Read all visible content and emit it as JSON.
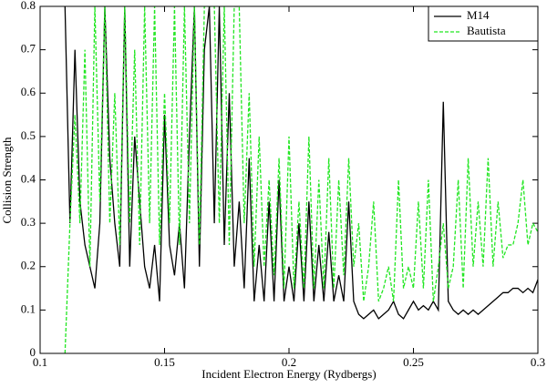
{
  "chart_data": {
    "type": "line",
    "xlabel": "Incident Electron Energy (Rydbergs)",
    "ylabel": "Collision Strength",
    "xlim": [
      0.1,
      0.3
    ],
    "xticks": [
      0.1,
      0.15,
      0.2,
      0.25,
      0.3
    ],
    "ylim": [
      0,
      0.8
    ],
    "yticks": [
      0,
      0.1,
      0.2,
      0.3,
      0.4,
      0.5,
      0.6,
      0.7,
      0.8
    ],
    "legend": "upper right",
    "x": [
      0.11,
      0.112,
      0.114,
      0.116,
      0.118,
      0.12,
      0.122,
      0.124,
      0.126,
      0.128,
      0.13,
      0.132,
      0.134,
      0.136,
      0.138,
      0.14,
      0.142,
      0.144,
      0.146,
      0.148,
      0.15,
      0.152,
      0.154,
      0.156,
      0.158,
      0.16,
      0.162,
      0.164,
      0.166,
      0.168,
      0.17,
      0.172,
      0.174,
      0.176,
      0.178,
      0.18,
      0.182,
      0.184,
      0.186,
      0.188,
      0.19,
      0.192,
      0.194,
      0.196,
      0.198,
      0.2,
      0.202,
      0.204,
      0.206,
      0.208,
      0.21,
      0.212,
      0.214,
      0.216,
      0.218,
      0.22,
      0.222,
      0.224,
      0.226,
      0.228,
      0.23,
      0.232,
      0.234,
      0.236,
      0.238,
      0.24,
      0.242,
      0.244,
      0.246,
      0.248,
      0.25,
      0.252,
      0.254,
      0.256,
      0.258,
      0.26,
      0.262,
      0.264,
      0.266,
      0.268,
      0.27,
      0.272,
      0.274,
      0.276,
      0.278,
      0.28,
      0.282,
      0.284,
      0.286,
      0.288,
      0.29,
      0.292,
      0.294,
      0.296,
      0.298,
      0.3
    ],
    "series": [
      {
        "name": "M14",
        "color": "#000000",
        "dashed": false,
        "values": [
          0.8,
          0.3,
          0.7,
          0.35,
          0.25,
          0.2,
          0.15,
          0.3,
          0.8,
          0.45,
          0.3,
          0.2,
          0.8,
          0.2,
          0.5,
          0.35,
          0.2,
          0.15,
          0.25,
          0.12,
          0.55,
          0.25,
          0.18,
          0.3,
          0.15,
          0.5,
          0.8,
          0.2,
          0.7,
          0.8,
          0.3,
          0.8,
          0.25,
          0.6,
          0.2,
          0.35,
          0.15,
          0.45,
          0.12,
          0.25,
          0.12,
          0.35,
          0.12,
          0.4,
          0.12,
          0.2,
          0.12,
          0.3,
          0.12,
          0.35,
          0.12,
          0.25,
          0.12,
          0.28,
          0.12,
          0.18,
          0.12,
          0.35,
          0.12,
          0.09,
          0.08,
          0.09,
          0.1,
          0.08,
          0.09,
          0.1,
          0.12,
          0.09,
          0.08,
          0.1,
          0.12,
          0.1,
          0.11,
          0.1,
          0.12,
          0.1,
          0.58,
          0.12,
          0.1,
          0.09,
          0.1,
          0.09,
          0.1,
          0.09,
          0.1,
          0.11,
          0.12,
          0.13,
          0.14,
          0.14,
          0.15,
          0.15,
          0.14,
          0.15,
          0.14,
          0.17
        ]
      },
      {
        "name": "Bautista",
        "color": "#22e622",
        "dashed": true,
        "values": [
          0.0,
          0.3,
          0.55,
          0.3,
          0.7,
          0.2,
          0.8,
          0.35,
          0.8,
          0.3,
          0.6,
          0.25,
          0.8,
          0.3,
          0.7,
          0.25,
          0.8,
          0.3,
          0.8,
          0.25,
          0.6,
          0.3,
          0.8,
          0.25,
          0.8,
          0.3,
          0.8,
          0.25,
          0.8,
          0.8,
          0.8,
          0.3,
          0.8,
          0.25,
          0.8,
          0.8,
          0.3,
          0.6,
          0.2,
          0.5,
          0.2,
          0.4,
          0.18,
          0.45,
          0.15,
          0.5,
          0.15,
          0.35,
          0.15,
          0.5,
          0.15,
          0.4,
          0.15,
          0.45,
          0.15,
          0.4,
          0.18,
          0.45,
          0.2,
          0.3,
          0.12,
          0.2,
          0.35,
          0.12,
          0.15,
          0.2,
          0.12,
          0.4,
          0.15,
          0.2,
          0.15,
          0.35,
          0.15,
          0.4,
          0.12,
          0.2,
          0.3,
          0.15,
          0.2,
          0.4,
          0.15,
          0.45,
          0.2,
          0.35,
          0.2,
          0.45,
          0.2,
          0.35,
          0.22,
          0.25,
          0.25,
          0.3,
          0.4,
          0.25,
          0.3,
          0.28
        ]
      }
    ]
  }
}
